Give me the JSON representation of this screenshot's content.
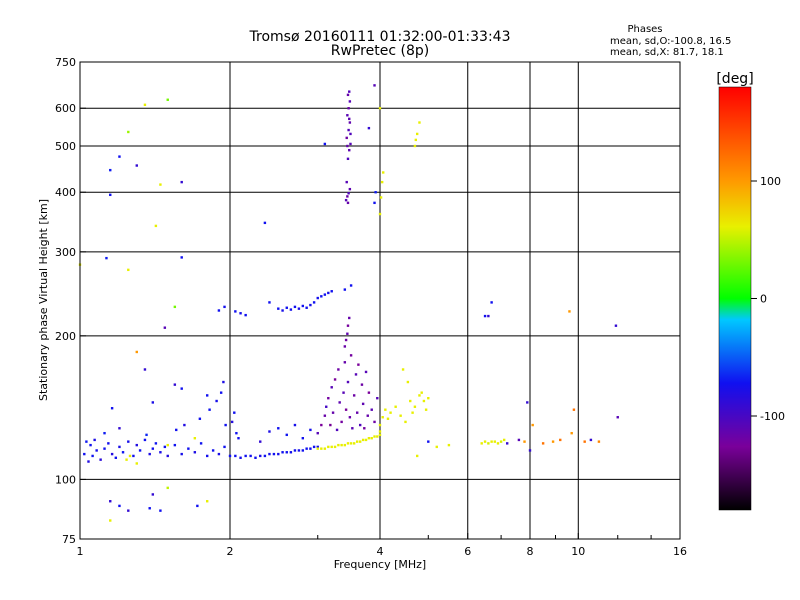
{
  "title": "Tromsø 20160111 01:32:00-01:33:43",
  "subtitle": "RwPretec (8p)",
  "phases_box": {
    "heading": "Phases",
    "line1": "mean, sd,O:-100.8, 16.5",
    "line2": "mean, sd,X:  81.7, 18.1"
  },
  "colorbar": {
    "unit_label": "[deg]",
    "ticks": [
      {
        "value": 100,
        "label": "100"
      },
      {
        "value": 0,
        "label": "0"
      },
      {
        "value": -100,
        "label": "-100"
      }
    ],
    "range": [
      -180,
      180
    ]
  },
  "chart_data": {
    "type": "scatter",
    "title": "Tromsø 20160111 01:32:00-01:33:43",
    "subtitle": "RwPretec (8p)",
    "xlabel": "Frequency [MHz]",
    "ylabel": "Stationary phase Virtual Height [km]",
    "x_scale": "log",
    "y_scale": "log",
    "xlim": [
      1,
      16
    ],
    "ylim": [
      75,
      750
    ],
    "x_ticks": [
      {
        "value": 1,
        "label": "1"
      },
      {
        "value": 2,
        "label": "2"
      },
      {
        "value": 4,
        "label": "4"
      },
      {
        "value": 6,
        "label": "6"
      },
      {
        "value": 8,
        "label": "8"
      },
      {
        "value": 10,
        "label": "10"
      },
      {
        "value": 16,
        "label": "16"
      }
    ],
    "x_minor_ticks": [
      3,
      5,
      7,
      9,
      12,
      14
    ],
    "x_grid": [
      2,
      4,
      6,
      8,
      10
    ],
    "y_ticks": [
      {
        "value": 75,
        "label": "75"
      },
      {
        "value": 100,
        "label": "100"
      },
      {
        "value": 200,
        "label": "200"
      },
      {
        "value": 300,
        "label": "300"
      },
      {
        "value": 400,
        "label": "400"
      },
      {
        "value": 500,
        "label": "500"
      },
      {
        "value": 600,
        "label": "600"
      },
      {
        "value": 750,
        "label": "750"
      }
    ],
    "y_grid": [
      100,
      200,
      300,
      400,
      500,
      600
    ],
    "grid": true,
    "color_encoding": "phase_deg",
    "points": [
      [
        1.02,
        113,
        -100
      ],
      [
        1.04,
        109,
        -105
      ],
      [
        1.06,
        112,
        -98
      ],
      [
        1.08,
        115,
        -102
      ],
      [
        1.1,
        110,
        -108
      ],
      [
        1.03,
        120,
        -96
      ],
      [
        1.05,
        118,
        -100
      ],
      [
        1.07,
        121,
        -104
      ],
      [
        1.12,
        116,
        -99
      ],
      [
        1.14,
        119,
        -101
      ],
      [
        1.16,
        113,
        -106
      ],
      [
        1.18,
        111,
        -100
      ],
      [
        1.2,
        117,
        -103
      ],
      [
        1.22,
        114,
        -97
      ],
      [
        1.25,
        120,
        -102
      ],
      [
        1.28,
        112,
        -100
      ],
      [
        1.3,
        118,
        -105
      ],
      [
        1.32,
        115,
        -99
      ],
      [
        1.35,
        121,
        -100
      ],
      [
        1.38,
        113,
        -104
      ],
      [
        1.4,
        116,
        -101
      ],
      [
        1.42,
        119,
        -98
      ],
      [
        1.45,
        114,
        -103
      ],
      [
        1.48,
        117,
        -100
      ],
      [
        1.5,
        112,
        -106
      ],
      [
        1.55,
        118,
        -99
      ],
      [
        1.6,
        113,
        -102
      ],
      [
        1.65,
        116,
        -100
      ],
      [
        1.7,
        114,
        -104
      ],
      [
        1.75,
        119,
        -98
      ],
      [
        1.8,
        112,
        -101
      ],
      [
        1.85,
        115,
        -100
      ],
      [
        1.9,
        113,
        -103
      ],
      [
        1.95,
        117,
        -99
      ],
      [
        2.0,
        112,
        -100
      ],
      [
        1.24,
        110,
        60
      ],
      [
        1.26,
        112,
        80
      ],
      [
        1.3,
        108,
        70
      ],
      [
        1.5,
        118,
        75
      ],
      [
        1.7,
        122,
        65
      ],
      [
        1.12,
        125,
        -95
      ],
      [
        1.2,
        128,
        -110
      ],
      [
        1.36,
        124,
        -90
      ],
      [
        1.56,
        127,
        -100
      ],
      [
        1.62,
        130,
        -105
      ],
      [
        1.74,
        134,
        -100
      ],
      [
        1.82,
        140,
        -98
      ],
      [
        1.88,
        146,
        -102
      ],
      [
        1.92,
        152,
        -100
      ],
      [
        1.94,
        160,
        -104
      ],
      [
        1.96,
        130,
        -100
      ],
      [
        2.02,
        132,
        -106
      ],
      [
        2.04,
        138,
        -100
      ],
      [
        2.06,
        125,
        -99
      ],
      [
        2.08,
        122,
        -101
      ],
      [
        1.16,
        141,
        -100
      ],
      [
        1.4,
        145,
        -103
      ],
      [
        1.6,
        155,
        -100
      ],
      [
        2.05,
        112,
        -100
      ],
      [
        2.1,
        111,
        -102
      ],
      [
        2.15,
        112,
        -99
      ],
      [
        2.2,
        112,
        -101
      ],
      [
        2.25,
        111,
        -100
      ],
      [
        2.3,
        112,
        -103
      ],
      [
        2.35,
        112,
        -99
      ],
      [
        2.4,
        113,
        -101
      ],
      [
        2.45,
        113,
        -100
      ],
      [
        2.5,
        113,
        -102
      ],
      [
        2.55,
        114,
        -100
      ],
      [
        2.6,
        114,
        -99
      ],
      [
        2.65,
        114,
        -101
      ],
      [
        2.7,
        115,
        -100
      ],
      [
        2.75,
        115,
        -102
      ],
      [
        2.8,
        115,
        -100
      ],
      [
        2.85,
        116,
        -99
      ],
      [
        2.9,
        116,
        -101
      ],
      [
        2.95,
        117,
        -100
      ],
      [
        3.0,
        117,
        -102
      ],
      [
        2.3,
        120,
        -110
      ],
      [
        2.4,
        126,
        -104
      ],
      [
        2.5,
        128,
        -100
      ],
      [
        2.6,
        124,
        -98
      ],
      [
        2.7,
        130,
        -102
      ],
      [
        2.8,
        122,
        -100
      ],
      [
        2.9,
        127,
        -101
      ],
      [
        3.0,
        116,
        80
      ],
      [
        3.05,
        116,
        85
      ],
      [
        3.1,
        116,
        78
      ],
      [
        3.15,
        117,
        82
      ],
      [
        3.2,
        117,
        88
      ],
      [
        3.25,
        117,
        80
      ],
      [
        3.3,
        118,
        84
      ],
      [
        3.35,
        118,
        79
      ],
      [
        3.4,
        118,
        86
      ],
      [
        3.45,
        119,
        81
      ],
      [
        3.5,
        119,
        83
      ],
      [
        3.55,
        119,
        80
      ],
      [
        3.6,
        120,
        87
      ],
      [
        3.65,
        120,
        82
      ],
      [
        3.7,
        121,
        78
      ],
      [
        3.75,
        121,
        84
      ],
      [
        3.8,
        122,
        80
      ],
      [
        3.85,
        122,
        86
      ],
      [
        3.9,
        123,
        81
      ],
      [
        3.95,
        123,
        83
      ],
      [
        4.0,
        124,
        80
      ],
      [
        3.0,
        125,
        -120
      ],
      [
        3.05,
        130,
        -130
      ],
      [
        3.1,
        136,
        -125
      ],
      [
        3.12,
        142,
        -115
      ],
      [
        3.15,
        148,
        -128
      ],
      [
        3.18,
        130,
        -132
      ],
      [
        3.2,
        156,
        -120
      ],
      [
        3.22,
        138,
        -124
      ],
      [
        3.25,
        162,
        -130
      ],
      [
        3.28,
        127,
        -118
      ],
      [
        3.3,
        170,
        -126
      ],
      [
        3.32,
        145,
        -122
      ],
      [
        3.35,
        132,
        -128
      ],
      [
        3.38,
        152,
        -120
      ],
      [
        3.4,
        176,
        -124
      ],
      [
        3.42,
        140,
        -130
      ],
      [
        3.45,
        160,
        -119
      ],
      [
        3.48,
        135,
        -125
      ],
      [
        3.5,
        182,
        -128
      ],
      [
        3.52,
        128,
        -121
      ],
      [
        3.55,
        150,
        -126
      ],
      [
        3.58,
        166,
        -120
      ],
      [
        3.6,
        138,
        -124
      ],
      [
        3.62,
        174,
        -130
      ],
      [
        3.65,
        130,
        -118
      ],
      [
        3.68,
        158,
        -126
      ],
      [
        3.7,
        144,
        -122
      ],
      [
        3.72,
        128,
        -128
      ],
      [
        3.75,
        168,
        -120
      ],
      [
        3.78,
        136,
        -124
      ],
      [
        3.8,
        152,
        -130
      ],
      [
        3.85,
        140,
        -121
      ],
      [
        3.9,
        132,
        -126
      ],
      [
        3.95,
        148,
        -120
      ],
      [
        3.4,
        190,
        -125
      ],
      [
        3.42,
        196,
        -127
      ],
      [
        3.44,
        202,
        -123
      ],
      [
        3.45,
        210,
        -129
      ],
      [
        3.47,
        218,
        -124
      ],
      [
        4.0,
        130,
        95
      ],
      [
        4.05,
        135,
        90
      ],
      [
        4.1,
        140,
        98
      ],
      [
        4.15,
        134,
        92
      ],
      [
        4.2,
        138,
        88
      ],
      [
        4.0,
        126,
        94
      ],
      [
        4.3,
        142,
        100
      ],
      [
        4.4,
        136,
        92
      ],
      [
        4.5,
        132,
        96
      ],
      [
        4.6,
        146,
        90
      ],
      [
        4.7,
        142,
        94
      ],
      [
        4.8,
        150,
        98
      ],
      [
        4.9,
        146,
        92
      ],
      [
        5.0,
        148,
        96
      ],
      [
        4.65,
        138,
        88
      ],
      [
        4.75,
        112,
        95
      ],
      [
        4.85,
        152,
        100
      ],
      [
        4.95,
        140,
        92
      ],
      [
        4.55,
        160,
        90
      ],
      [
        4.45,
        170,
        88
      ],
      [
        3.42,
        385,
        -120
      ],
      [
        3.44,
        392,
        -125
      ],
      [
        3.46,
        398,
        -118
      ],
      [
        3.48,
        406,
        -122
      ],
      [
        3.43,
        420,
        -120
      ],
      [
        3.45,
        380,
        -124
      ],
      [
        3.45,
        470,
        -118
      ],
      [
        3.47,
        490,
        -122
      ],
      [
        3.49,
        505,
        -120
      ],
      [
        3.43,
        520,
        -126
      ],
      [
        3.46,
        540,
        -119
      ],
      [
        3.48,
        560,
        -123
      ],
      [
        3.44,
        580,
        -121
      ],
      [
        3.46,
        600,
        -125
      ],
      [
        3.48,
        620,
        -120
      ],
      [
        3.45,
        640,
        -124
      ],
      [
        3.47,
        650,
        -119
      ],
      [
        3.47,
        570,
        -122
      ],
      [
        3.49,
        530,
        -118
      ],
      [
        3.44,
        500,
        -124
      ],
      [
        4.0,
        360,
        95
      ],
      [
        4.02,
        390,
        90
      ],
      [
        4.04,
        420,
        100
      ],
      [
        4.06,
        440,
        94
      ],
      [
        4.0,
        600,
        92
      ],
      [
        4.7,
        500,
        88
      ],
      [
        4.75,
        530,
        94
      ],
      [
        4.8,
        560,
        90
      ],
      [
        4.72,
        515,
        96
      ],
      [
        3.9,
        380,
        -100
      ],
      [
        3.92,
        400,
        -95
      ],
      [
        3.1,
        505,
        -100
      ],
      [
        3.9,
        670,
        -120
      ],
      [
        3.8,
        545,
        -110
      ],
      [
        2.05,
        225,
        -100
      ],
      [
        2.1,
        223,
        -102
      ],
      [
        2.15,
        221,
        -100
      ],
      [
        1.95,
        230,
        -101
      ],
      [
        1.9,
        226,
        -100
      ],
      [
        2.5,
        228,
        -100
      ],
      [
        2.55,
        226,
        -102
      ],
      [
        2.6,
        229,
        -99
      ],
      [
        2.65,
        227,
        -101
      ],
      [
        2.7,
        230,
        -100
      ],
      [
        2.75,
        228,
        -103
      ],
      [
        2.8,
        231,
        -100
      ],
      [
        2.85,
        229,
        -100
      ],
      [
        2.9,
        232,
        -102
      ],
      [
        2.95,
        235,
        -100
      ],
      [
        3.0,
        240,
        -101
      ],
      [
        3.05,
        242,
        -99
      ],
      [
        3.1,
        244,
        -100
      ],
      [
        3.15,
        246,
        -102
      ],
      [
        3.2,
        248,
        -100
      ],
      [
        2.4,
        235,
        -100
      ],
      [
        3.4,
        250,
        -100
      ],
      [
        3.5,
        255,
        -100
      ],
      [
        1.15,
        445,
        -95
      ],
      [
        1.2,
        475,
        -100
      ],
      [
        1.25,
        535,
        40
      ],
      [
        1.3,
        455,
        -110
      ],
      [
        1.35,
        610,
        60
      ],
      [
        1.5,
        625,
        30
      ],
      [
        1.6,
        420,
        -110
      ],
      [
        1.15,
        395,
        -100
      ],
      [
        1.45,
        415,
        95
      ],
      [
        1.42,
        340,
        100
      ],
      [
        1.6,
        292,
        -100
      ],
      [
        1.13,
        291,
        -95
      ],
      [
        1.25,
        275,
        90
      ],
      [
        1.0,
        282,
        80
      ],
      [
        1.55,
        230,
        30
      ],
      [
        1.48,
        208,
        -120
      ],
      [
        2.35,
        345,
        -100
      ],
      [
        1.3,
        185,
        140
      ],
      [
        1.55,
        158,
        -110
      ],
      [
        1.8,
        150,
        -100
      ],
      [
        1.35,
        170,
        -110
      ],
      [
        1.15,
        90,
        -110
      ],
      [
        1.2,
        88,
        -100
      ],
      [
        1.38,
        87,
        -100
      ],
      [
        1.45,
        86,
        -100
      ],
      [
        1.72,
        88,
        -100
      ],
      [
        1.15,
        82,
        75
      ],
      [
        1.8,
        90,
        90
      ],
      [
        1.25,
        86,
        -110
      ],
      [
        1.4,
        93,
        -110
      ],
      [
        1.5,
        96,
        50
      ],
      [
        6.5,
        220,
        -100
      ],
      [
        6.6,
        220,
        -110
      ],
      [
        6.7,
        235,
        -100
      ],
      [
        7.9,
        145,
        -110
      ],
      [
        9.6,
        225,
        140
      ],
      [
        9.7,
        125,
        140
      ],
      [
        9.8,
        140,
        150
      ],
      [
        8.1,
        130,
        140
      ],
      [
        11.9,
        210,
        -110
      ],
      [
        12.0,
        135,
        -120
      ],
      [
        6.4,
        119,
        60
      ],
      [
        6.5,
        120,
        70
      ],
      [
        6.6,
        119,
        55
      ],
      [
        6.7,
        120,
        65
      ],
      [
        6.8,
        120,
        60
      ],
      [
        6.9,
        119,
        70
      ],
      [
        7.0,
        120,
        55
      ],
      [
        7.1,
        121,
        60
      ],
      [
        7.2,
        119,
        -110
      ],
      [
        7.6,
        121,
        -120
      ],
      [
        7.8,
        120,
        140
      ],
      [
        8.5,
        119,
        150
      ],
      [
        8.9,
        120,
        140
      ],
      [
        9.2,
        121,
        150
      ],
      [
        10.3,
        120,
        150
      ],
      [
        11.0,
        120,
        145
      ],
      [
        10.6,
        121,
        -110
      ],
      [
        5.0,
        120,
        -100
      ],
      [
        5.2,
        117,
        60
      ],
      [
        5.5,
        118,
        70
      ],
      [
        8.0,
        115,
        -110
      ]
    ]
  }
}
